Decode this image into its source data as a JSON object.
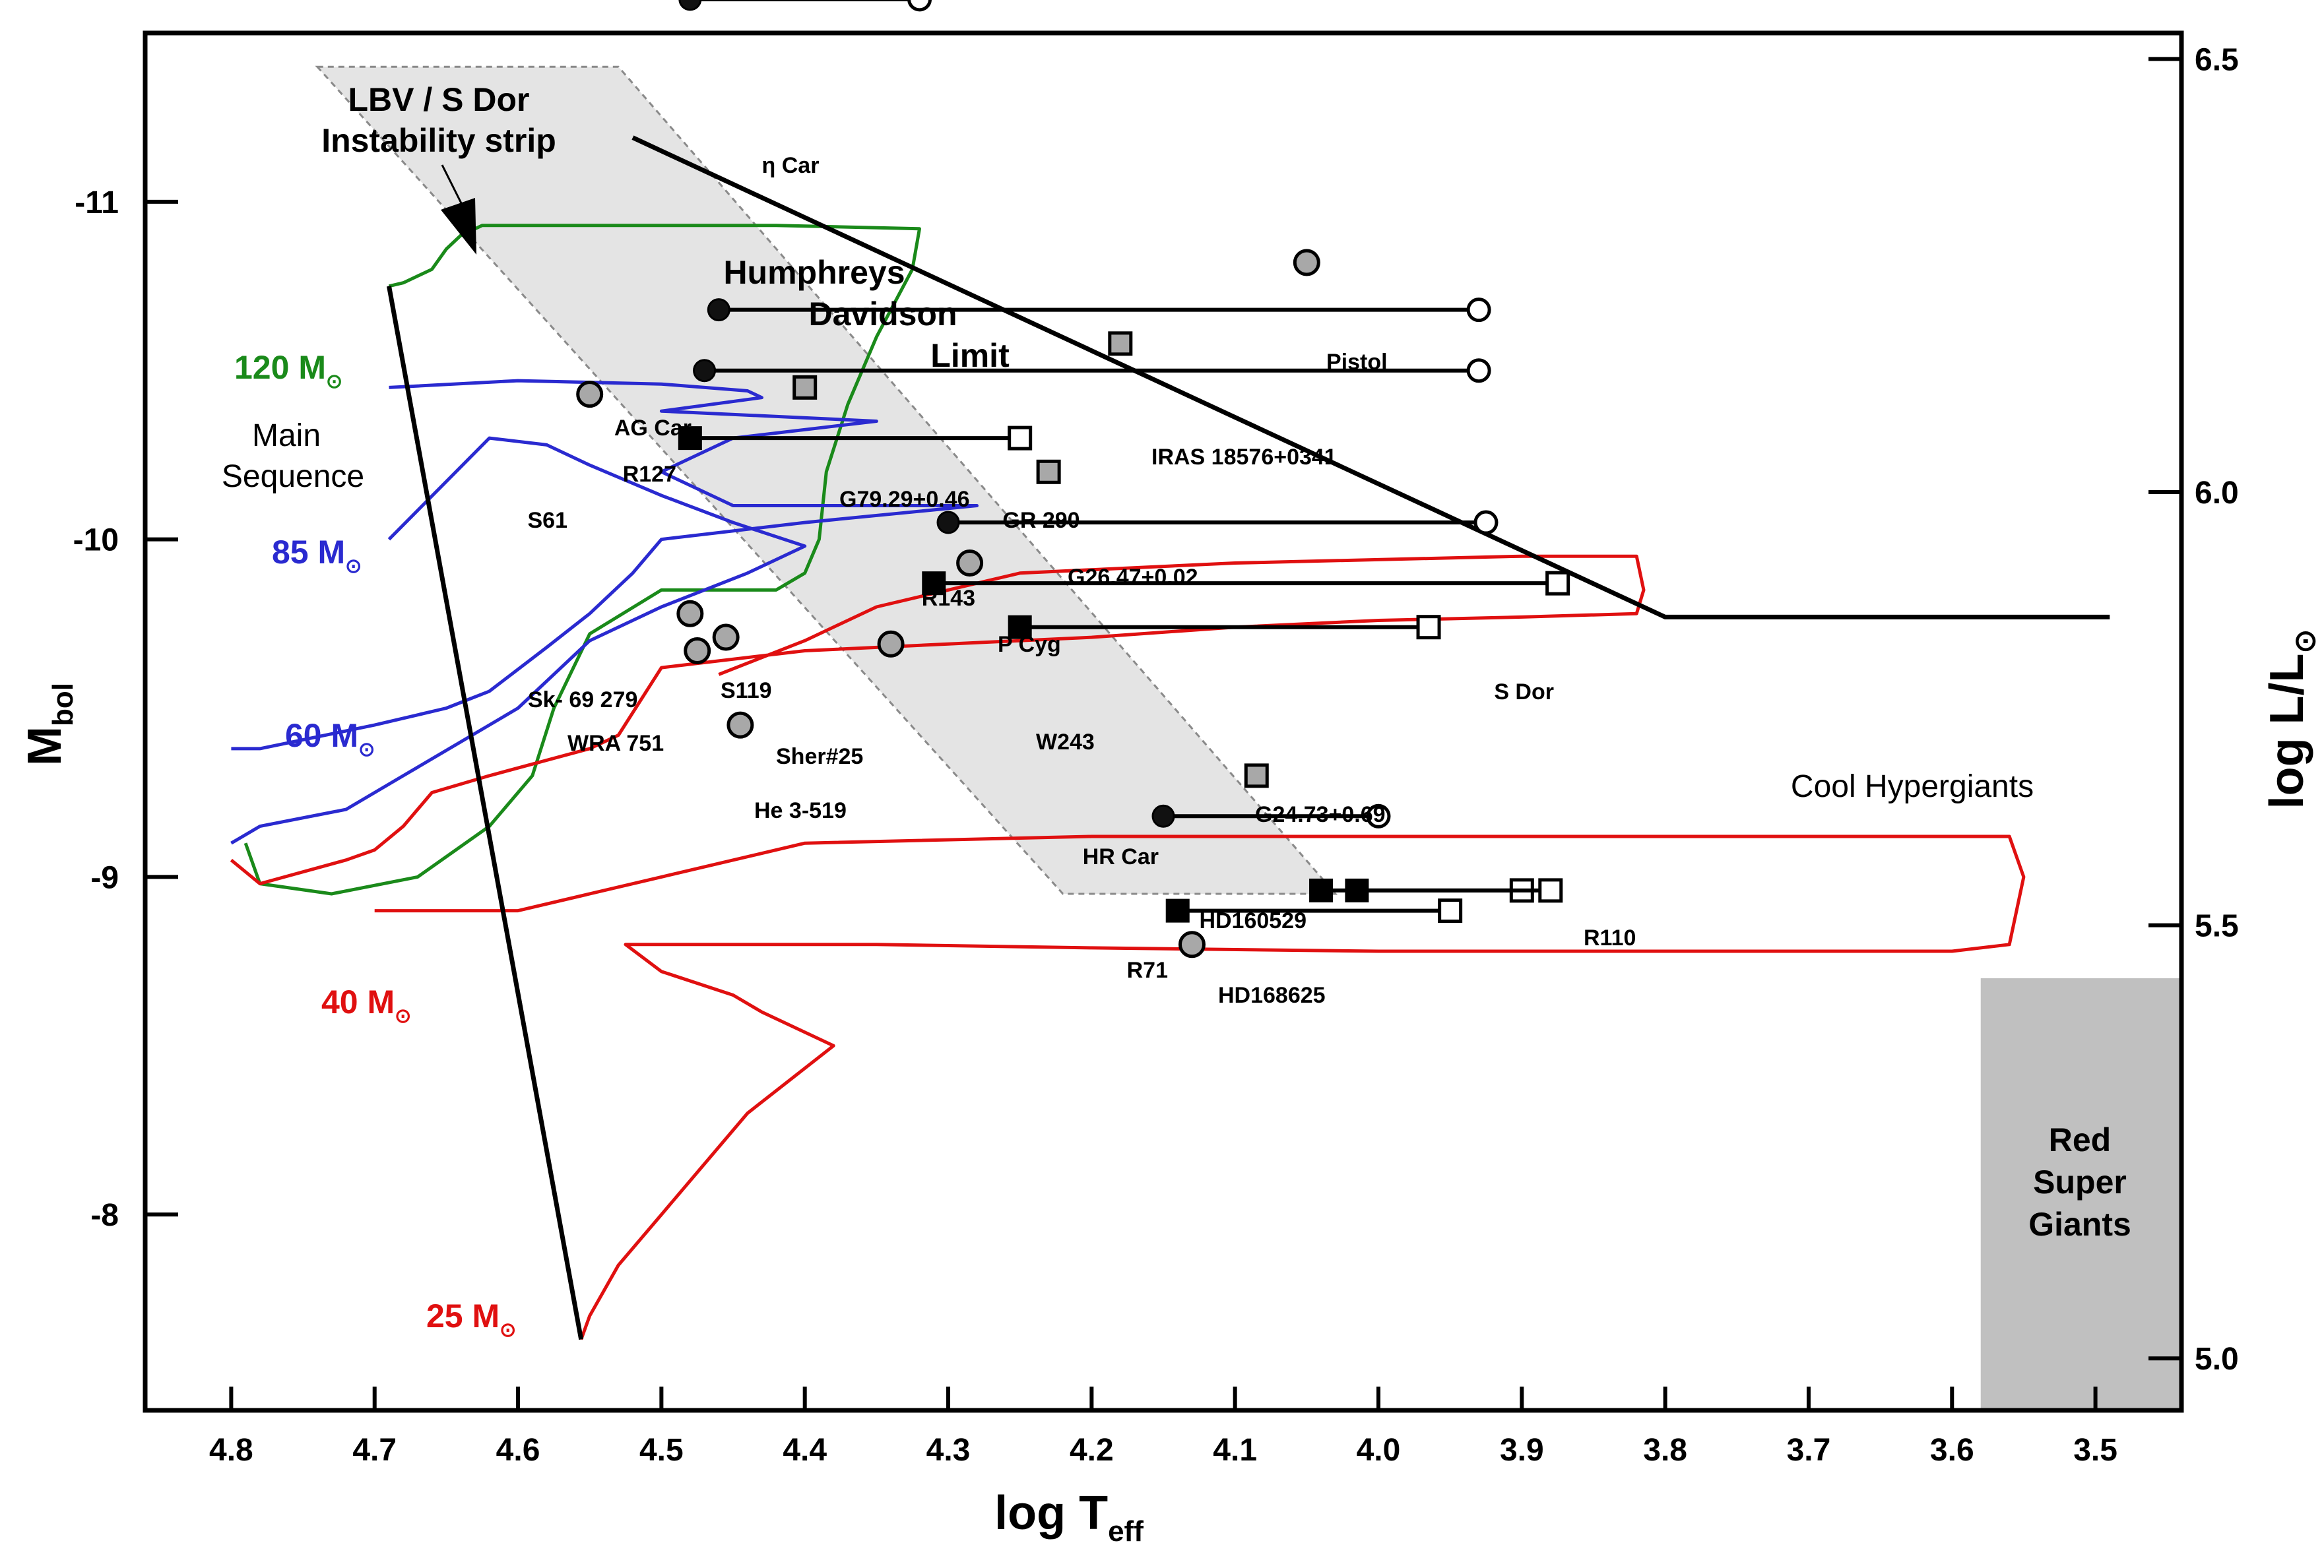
{
  "chart_data": {
    "type": "scatter",
    "title": "",
    "xlabel": "log T",
    "xlabel_sub": "eff",
    "ylabel": "M",
    "ylabel_sub": "bol",
    "y2label": "log L/L",
    "y2label_sub": "⊙",
    "xlim": [
      4.86,
      3.44
    ],
    "ylim": [
      -7.42,
      -11.5
    ],
    "y2lim": [
      4.94,
      6.53
    ],
    "x_ticks": [
      "4.8",
      "4.7",
      "4.6",
      "4.5",
      "4.4",
      "4.3",
      "4.2",
      "4.1",
      "4.0",
      "3.9",
      "3.8",
      "3.7",
      "3.6",
      "3.5"
    ],
    "x_tick_values": [
      4.8,
      4.7,
      4.6,
      4.5,
      4.4,
      4.3,
      4.2,
      4.1,
      4.0,
      3.9,
      3.8,
      3.7,
      3.6,
      3.5
    ],
    "y_ticks": [
      "-11",
      "-10",
      "-9",
      "-8"
    ],
    "y_tick_values": [
      -11,
      -10,
      -9,
      -8
    ],
    "y2_ticks": [
      "6.5",
      "6.0",
      "5.5",
      "5.0"
    ],
    "y2_tick_values": [
      6.5,
      6.0,
      5.5,
      5.0
    ],
    "regions": {
      "lbv_strip": {
        "label_line1": "LBV / S Dor",
        "label_line2": "Instability strip",
        "polygon": [
          [
            4.74,
            -11.4
          ],
          [
            4.53,
            -11.4
          ],
          [
            4.03,
            -8.95
          ],
          [
            4.22,
            -8.95
          ]
        ]
      },
      "red_supergiants": {
        "label_line1": "Red",
        "label_line2": "Super",
        "label_line3": "Giants",
        "x_range": [
          3.58,
          3.44
        ],
        "y_range": [
          -7.42,
          -8.7
        ]
      },
      "main_sequence_label": {
        "line1": "Main",
        "line2": "Sequence"
      },
      "cool_hypergiants_label": "Cool Hypergiants",
      "hd_limit_label": {
        "line1": "Humphreys",
        "line2": "Davidson",
        "line3": "Limit"
      }
    },
    "humphreys_davidson_limit": [
      [
        4.52,
        -11.19
      ],
      [
        3.8,
        -9.77
      ],
      [
        3.49,
        -9.77
      ]
    ],
    "main_sequence": [
      [
        4.69,
        -10.75
      ],
      [
        4.556,
        -7.63
      ]
    ],
    "tracks": [
      {
        "name": "120 M",
        "mass": "120",
        "color": "#1a8a1a",
        "points": [
          [
            4.69,
            -10.75
          ],
          [
            4.68,
            -10.76
          ],
          [
            4.66,
            -10.8
          ],
          [
            4.65,
            -10.86
          ],
          [
            4.64,
            -10.9
          ],
          [
            4.625,
            -10.93
          ],
          [
            4.62,
            -10.93
          ],
          [
            4.6,
            -10.93
          ],
          [
            4.5,
            -10.93
          ],
          [
            4.42,
            -10.93
          ],
          [
            4.32,
            -10.92
          ],
          [
            4.325,
            -10.8
          ],
          [
            4.35,
            -10.6
          ],
          [
            4.37,
            -10.4
          ],
          [
            4.385,
            -10.2
          ],
          [
            4.39,
            -10.0
          ],
          [
            4.4,
            -9.9
          ],
          [
            4.42,
            -9.85
          ],
          [
            4.5,
            -9.85
          ],
          [
            4.55,
            -9.72
          ],
          [
            4.575,
            -9.5
          ],
          [
            4.59,
            -9.3
          ],
          [
            4.62,
            -9.15
          ],
          [
            4.67,
            -9.0
          ],
          [
            4.73,
            -8.95
          ],
          [
            4.78,
            -8.98
          ],
          [
            4.79,
            -9.1
          ]
        ]
      },
      {
        "name": "85 M",
        "mass": "85",
        "color": "#2a2ad0",
        "points": [
          [
            4.69,
            -10.45
          ],
          [
            4.6,
            -10.47
          ],
          [
            4.5,
            -10.46
          ],
          [
            4.44,
            -10.44
          ],
          [
            4.43,
            -10.42
          ],
          [
            4.5,
            -10.38
          ],
          [
            4.35,
            -10.35
          ],
          [
            4.45,
            -10.3
          ],
          [
            4.5,
            -10.2
          ],
          [
            4.45,
            -10.1
          ],
          [
            4.35,
            -10.1
          ],
          [
            4.28,
            -10.1
          ],
          [
            4.4,
            -10.05
          ],
          [
            4.5,
            -10.0
          ],
          [
            4.52,
            -9.9
          ],
          [
            4.55,
            -9.78
          ],
          [
            4.58,
            -9.68
          ],
          [
            4.62,
            -9.55
          ],
          [
            4.65,
            -9.5
          ],
          [
            4.7,
            -9.45
          ],
          [
            4.78,
            -9.38
          ],
          [
            4.8,
            -9.38
          ]
        ]
      },
      {
        "name": "60 M",
        "mass": "60",
        "color": "#2a2ad0",
        "points": [
          [
            4.69,
            -10.0
          ],
          [
            4.62,
            -10.3
          ],
          [
            4.58,
            -10.28
          ],
          [
            4.55,
            -10.22
          ],
          [
            4.5,
            -10.13
          ],
          [
            4.45,
            -10.05
          ],
          [
            4.4,
            -9.98
          ],
          [
            4.44,
            -9.9
          ],
          [
            4.5,
            -9.8
          ],
          [
            4.55,
            -9.7
          ],
          [
            4.6,
            -9.5
          ],
          [
            4.62,
            -9.45
          ],
          [
            4.68,
            -9.3
          ],
          [
            4.72,
            -9.2
          ],
          [
            4.78,
            -9.15
          ],
          [
            4.8,
            -9.1
          ]
        ]
      },
      {
        "name": "40 M",
        "mass": "40",
        "color": "#e01010",
        "points": [
          [
            4.46,
            -9.6
          ],
          [
            4.4,
            -9.7
          ],
          [
            4.35,
            -9.8
          ],
          [
            4.25,
            -9.9
          ],
          [
            4.1,
            -9.93
          ],
          [
            3.9,
            -9.95
          ],
          [
            3.82,
            -9.95
          ],
          [
            3.815,
            -9.85
          ],
          [
            3.82,
            -9.78
          ],
          [
            3.9,
            -9.77
          ],
          [
            4.0,
            -9.76
          ],
          [
            4.1,
            -9.74
          ],
          [
            4.2,
            -9.71
          ],
          [
            4.3,
            -9.69
          ],
          [
            4.4,
            -9.67
          ],
          [
            4.5,
            -9.62
          ],
          [
            4.53,
            -9.42
          ],
          [
            4.55,
            -9.38
          ],
          [
            4.62,
            -9.3
          ],
          [
            4.66,
            -9.25
          ],
          [
            4.68,
            -9.15
          ],
          [
            4.7,
            -9.08
          ],
          [
            4.72,
            -9.05
          ],
          [
            4.78,
            -8.98
          ],
          [
            4.8,
            -9.05
          ]
        ]
      },
      {
        "name": "25 M",
        "mass": "25",
        "color": "#e01010",
        "points": [
          [
            4.556,
            -7.63
          ],
          [
            4.55,
            -7.7
          ],
          [
            4.53,
            -7.85
          ],
          [
            4.5,
            -8.0
          ],
          [
            4.44,
            -8.3
          ],
          [
            4.38,
            -8.5
          ],
          [
            4.43,
            -8.6
          ],
          [
            4.45,
            -8.65
          ],
          [
            4.5,
            -8.72
          ],
          [
            4.525,
            -8.8
          ],
          [
            4.5,
            -8.8
          ],
          [
            4.35,
            -8.8
          ],
          [
            4.2,
            -8.79
          ],
          [
            4.0,
            -8.78
          ],
          [
            3.8,
            -8.78
          ],
          [
            3.6,
            -8.78
          ],
          [
            3.56,
            -8.8
          ],
          [
            3.55,
            -9.0
          ],
          [
            3.56,
            -9.12
          ],
          [
            3.62,
            -9.12
          ],
          [
            3.8,
            -9.12
          ],
          [
            4.0,
            -9.12
          ],
          [
            4.2,
            -9.12
          ],
          [
            4.4,
            -9.1
          ],
          [
            4.5,
            -9.0
          ],
          [
            4.6,
            -8.9
          ],
          [
            4.7,
            -8.9
          ]
        ]
      }
    ],
    "excursions": [
      {
        "star": "η Car",
        "hot_x": 4.48,
        "cool_x": 4.32,
        "mbol": -11.6,
        "marker": "circle"
      },
      {
        "star": "AG Car",
        "hot_x": 4.46,
        "cool_x": 3.93,
        "mbol": -10.68,
        "marker": "circle"
      },
      {
        "star": "R127",
        "hot_x": 4.47,
        "cool_x": 3.93,
        "mbol": -10.5,
        "marker": "circle"
      },
      {
        "star": "R143",
        "hot_x": 4.3,
        "cool_x": 3.925,
        "mbol": -10.05,
        "marker": "circle"
      },
      {
        "star": "HR Car",
        "hot_x": 4.15,
        "cool_x": 4.0,
        "mbol": -9.18,
        "marker": "circle"
      },
      {
        "star": "GR 290",
        "hot_x": 4.48,
        "cool_x": 4.25,
        "mbol": -10.3,
        "marker": "square"
      },
      {
        "star": "S Dor",
        "hot_x": 4.31,
        "cool_x": 3.875,
        "mbol": -9.87,
        "marker": "square"
      },
      {
        "star": "W243",
        "hot_x": 4.25,
        "cool_x": 3.965,
        "mbol": -9.74,
        "marker": "square"
      },
      {
        "star": "HD160529",
        "hot_x": 4.04,
        "cool_x": 3.9,
        "mbol": -8.96,
        "marker": "square"
      },
      {
        "star": "R110",
        "hot_x": 4.015,
        "cool_x": 3.88,
        "mbol": -8.96,
        "marker": "square"
      },
      {
        "star": "R71",
        "hot_x": 4.14,
        "cool_x": 3.95,
        "mbol": -8.9,
        "marker": "square"
      }
    ],
    "points": [
      {
        "star": "Pistol",
        "x": 4.05,
        "mbol": -10.82,
        "marker": "circle-gray"
      },
      {
        "star": "S61",
        "x": 4.55,
        "mbol": -10.43,
        "marker": "circle-gray"
      },
      {
        "star": "P Cyg",
        "x": 4.285,
        "mbol": -9.93,
        "marker": "circle-gray"
      },
      {
        "star": "Sk- 69 279",
        "x": 4.48,
        "mbol": -9.78,
        "marker": "circle-gray"
      },
      {
        "star": "S119",
        "x": 4.455,
        "mbol": -9.71,
        "marker": "circle-gray"
      },
      {
        "star": "WRA 751",
        "x": 4.475,
        "mbol": -9.67,
        "marker": "circle-gray"
      },
      {
        "star": "Sher#25",
        "x": 4.34,
        "mbol": -9.69,
        "marker": "circle-gray"
      },
      {
        "star": "He 3-519",
        "x": 4.445,
        "mbol": -9.45,
        "marker": "circle-gray"
      },
      {
        "star": "HD168625",
        "x": 4.13,
        "mbol": -8.8,
        "marker": "circle-gray"
      },
      {
        "star": "IRAS 18576+0341",
        "x": 4.18,
        "mbol": -10.58,
        "marker": "square-gray"
      },
      {
        "star": "G79.29+0.46",
        "x": 4.4,
        "mbol": -10.45,
        "marker": "square-gray"
      },
      {
        "star": "G26.47+0.02",
        "x": 4.23,
        "mbol": -10.2,
        "marker": "square-gray"
      },
      {
        "star": "G24.73+0.69",
        "x": 4.085,
        "mbol": -9.3,
        "marker": "square-gray"
      }
    ]
  }
}
